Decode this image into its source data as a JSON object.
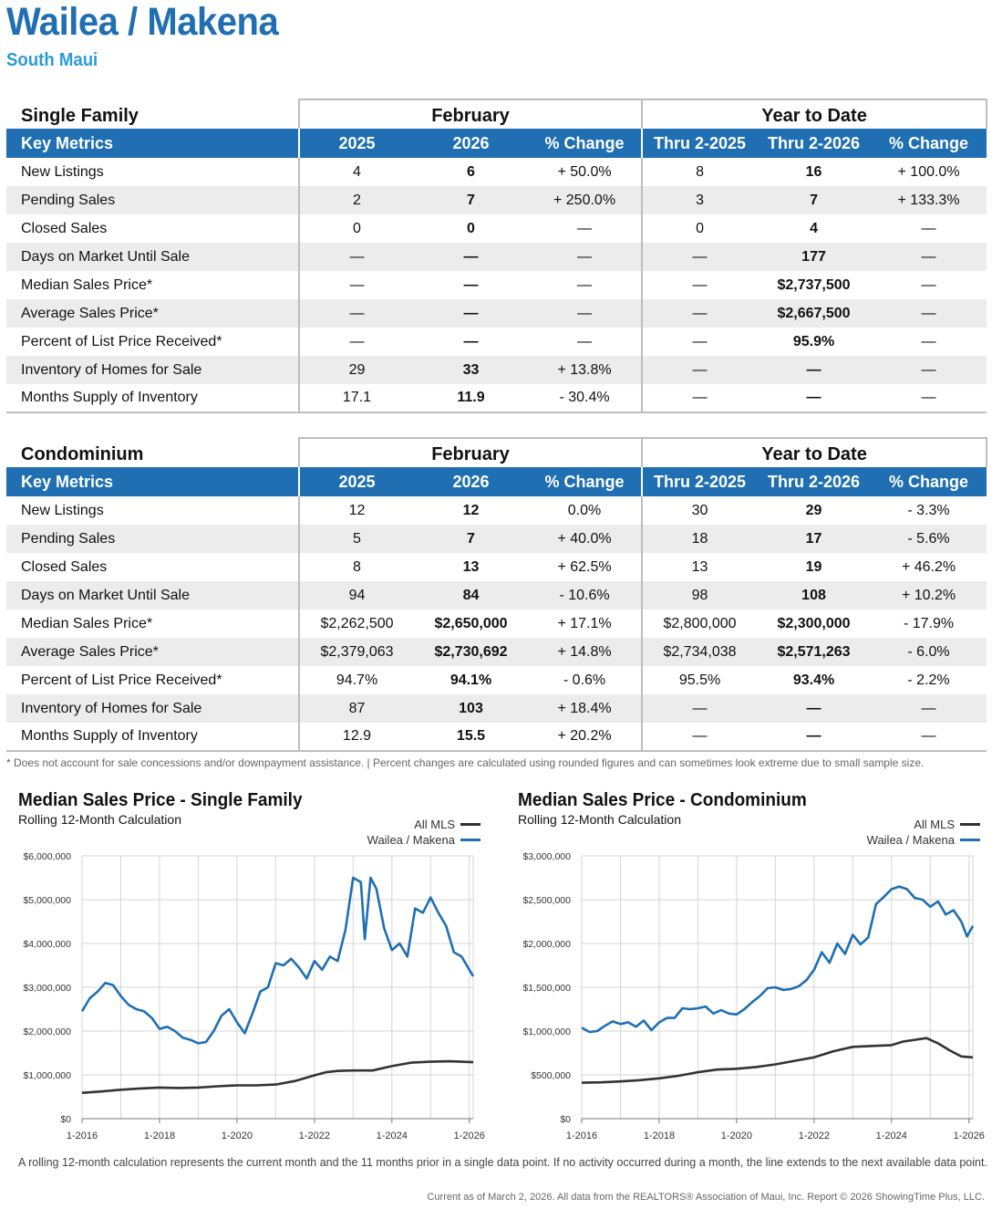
{
  "header": {
    "title": "Wailea / Makena",
    "subtitle": "South Maui"
  },
  "tables": [
    {
      "section": "Single Family",
      "group_month": "February",
      "group_ytd": "Year to Date",
      "columns": [
        "Key Metrics",
        "2025",
        "2026",
        "% Change",
        "Thru 2-2025",
        "Thru 2-2026",
        "% Change"
      ],
      "rows": [
        [
          "New Listings",
          "4",
          "6",
          "+ 50.0%",
          "8",
          "16",
          "+ 100.0%"
        ],
        [
          "Pending Sales",
          "2",
          "7",
          "+ 250.0%",
          "3",
          "7",
          "+ 133.3%"
        ],
        [
          "Closed Sales",
          "0",
          "0",
          "—",
          "0",
          "4",
          "—"
        ],
        [
          "Days on Market Until Sale",
          "—",
          "—",
          "—",
          "—",
          "177",
          "—"
        ],
        [
          "Median Sales Price*",
          "—",
          "—",
          "—",
          "—",
          "$2,737,500",
          "—"
        ],
        [
          "Average Sales Price*",
          "—",
          "—",
          "—",
          "—",
          "$2,667,500",
          "—"
        ],
        [
          "Percent of List Price Received*",
          "—",
          "—",
          "—",
          "—",
          "95.9%",
          "—"
        ],
        [
          "Inventory of Homes for Sale",
          "29",
          "33",
          "+ 13.8%",
          "—",
          "—",
          "—"
        ],
        [
          "Months Supply of Inventory",
          "17.1",
          "11.9",
          "- 30.4%",
          "—",
          "—",
          "—"
        ]
      ]
    },
    {
      "section": "Condominium",
      "group_month": "February",
      "group_ytd": "Year to Date",
      "columns": [
        "Key Metrics",
        "2025",
        "2026",
        "% Change",
        "Thru 2-2025",
        "Thru 2-2026",
        "% Change"
      ],
      "rows": [
        [
          "New Listings",
          "12",
          "12",
          "0.0%",
          "30",
          "29",
          "- 3.3%"
        ],
        [
          "Pending Sales",
          "5",
          "7",
          "+ 40.0%",
          "18",
          "17",
          "- 5.6%"
        ],
        [
          "Closed Sales",
          "8",
          "13",
          "+ 62.5%",
          "13",
          "19",
          "+ 46.2%"
        ],
        [
          "Days on Market Until Sale",
          "94",
          "84",
          "- 10.6%",
          "98",
          "108",
          "+ 10.2%"
        ],
        [
          "Median Sales Price*",
          "$2,262,500",
          "$2,650,000",
          "+ 17.1%",
          "$2,800,000",
          "$2,300,000",
          "- 17.9%"
        ],
        [
          "Average Sales Price*",
          "$2,379,063",
          "$2,730,692",
          "+ 14.8%",
          "$2,734,038",
          "$2,571,263",
          "- 6.0%"
        ],
        [
          "Percent of List Price Received*",
          "94.7%",
          "94.1%",
          "- 0.6%",
          "95.5%",
          "93.4%",
          "- 2.2%"
        ],
        [
          "Inventory of Homes for Sale",
          "87",
          "103",
          "+ 18.4%",
          "—",
          "—",
          "—"
        ],
        [
          "Months Supply of Inventory",
          "12.9",
          "15.5",
          "+ 20.2%",
          "—",
          "—",
          "—"
        ]
      ]
    }
  ],
  "footnote": "* Does not account for sale concessions and/or downpayment assistance. | Percent changes are calculated using rounded figures and can sometimes look extreme due to small sample size.",
  "bottom_note": "A rolling 12-month calculation represents the current month and the 11 months prior in a single data point. If no activity occurred during a month, the line extends to the next available data point.",
  "credit": "Current as of March 2, 2026. All data from the REALTORS® Association of Maui, Inc. Report © 2026 ShowingTime Plus, LLC.",
  "colors": {
    "brand_blue": "#1f6fb2",
    "subtitle_blue": "#2a9bd8",
    "all_mls": "#333333",
    "local": "#1f6fb2"
  },
  "chart_data": [
    {
      "type": "line",
      "title": "Median Sales Price - Single Family",
      "subtitle": "Rolling 12-Month Calculation",
      "legend": [
        "All MLS",
        "Wailea / Makena"
      ],
      "ylim": [
        0,
        6000000
      ],
      "yticks": [
        0,
        1000000,
        2000000,
        3000000,
        4000000,
        5000000,
        6000000
      ],
      "ytick_labels": [
        "$0",
        "$1,000,000",
        "$2,000,000",
        "$3,000,000",
        "$4,000,000",
        "$5,000,000",
        "$6,000,000"
      ],
      "xlim": [
        2016.0,
        2026.1
      ],
      "xticks": [
        2016,
        2018,
        2020,
        2022,
        2024,
        2026
      ],
      "xtick_labels": [
        "1-2016",
        "1-2018",
        "1-2020",
        "1-2022",
        "1-2024",
        "1-2026"
      ],
      "series": [
        {
          "name": "All MLS",
          "x": [
            2016.0,
            2016.5,
            2017.0,
            2017.5,
            2018.0,
            2018.5,
            2019.0,
            2019.5,
            2020.0,
            2020.5,
            2021.0,
            2021.5,
            2022.0,
            2022.3,
            2022.6,
            2023.0,
            2023.5,
            2024.0,
            2024.5,
            2025.0,
            2025.5,
            2026.1
          ],
          "y": [
            590000,
            620000,
            660000,
            690000,
            710000,
            700000,
            710000,
            740000,
            760000,
            760000,
            780000,
            860000,
            990000,
            1060000,
            1090000,
            1100000,
            1100000,
            1200000,
            1280000,
            1300000,
            1310000,
            1290000
          ]
        },
        {
          "name": "Wailea / Makena",
          "x": [
            2016.0,
            2016.2,
            2016.4,
            2016.6,
            2016.8,
            2017.0,
            2017.2,
            2017.4,
            2017.6,
            2017.8,
            2018.0,
            2018.2,
            2018.4,
            2018.6,
            2018.8,
            2019.0,
            2019.2,
            2019.4,
            2019.6,
            2019.8,
            2020.0,
            2020.2,
            2020.4,
            2020.6,
            2020.8,
            2021.0,
            2021.2,
            2021.4,
            2021.6,
            2021.8,
            2022.0,
            2022.2,
            2022.4,
            2022.6,
            2022.8,
            2023.0,
            2023.2,
            2023.3,
            2023.45,
            2023.6,
            2023.8,
            2024.0,
            2024.2,
            2024.4,
            2024.6,
            2024.8,
            2025.0,
            2025.2,
            2025.4,
            2025.6,
            2025.8,
            2026.1
          ],
          "y": [
            2450000,
            2750000,
            2900000,
            3100000,
            3050000,
            2800000,
            2600000,
            2500000,
            2450000,
            2300000,
            2050000,
            2100000,
            2000000,
            1850000,
            1800000,
            1720000,
            1750000,
            2000000,
            2350000,
            2500000,
            2200000,
            1950000,
            2400000,
            2900000,
            3000000,
            3550000,
            3500000,
            3650000,
            3450000,
            3200000,
            3600000,
            3400000,
            3700000,
            3600000,
            4300000,
            5500000,
            5400000,
            4100000,
            5500000,
            5250000,
            4350000,
            3850000,
            4000000,
            3700000,
            4800000,
            4700000,
            5050000,
            4700000,
            4400000,
            3800000,
            3700000,
            3250000
          ]
        }
      ]
    },
    {
      "type": "line",
      "title": "Median Sales Price - Condominium",
      "subtitle": "Rolling 12-Month Calculation",
      "legend": [
        "All MLS",
        "Wailea / Makena"
      ],
      "ylim": [
        0,
        3000000
      ],
      "yticks": [
        0,
        500000,
        1000000,
        1500000,
        2000000,
        2500000,
        3000000
      ],
      "ytick_labels": [
        "$0",
        "$500,000",
        "$1,000,000",
        "$1,500,000",
        "$2,000,000",
        "$2,500,000",
        "$3,000,000"
      ],
      "xlim": [
        2016.0,
        2026.1
      ],
      "xticks": [
        2016,
        2018,
        2020,
        2022,
        2024,
        2026
      ],
      "xtick_labels": [
        "1-2016",
        "1-2018",
        "1-2020",
        "1-2022",
        "1-2024",
        "1-2026"
      ],
      "series": [
        {
          "name": "All MLS",
          "x": [
            2016.0,
            2016.5,
            2017.0,
            2017.5,
            2018.0,
            2018.5,
            2019.0,
            2019.5,
            2020.0,
            2020.5,
            2021.0,
            2021.5,
            2022.0,
            2022.5,
            2023.0,
            2023.5,
            2024.0,
            2024.3,
            2024.6,
            2024.9,
            2025.2,
            2025.5,
            2025.8,
            2026.1
          ],
          "y": [
            410000,
            415000,
            425000,
            440000,
            460000,
            490000,
            530000,
            560000,
            570000,
            590000,
            620000,
            660000,
            700000,
            770000,
            820000,
            830000,
            840000,
            880000,
            900000,
            920000,
            860000,
            780000,
            710000,
            700000
          ]
        },
        {
          "name": "Wailea / Makena",
          "x": [
            2016.0,
            2016.2,
            2016.4,
            2016.6,
            2016.8,
            2017.0,
            2017.2,
            2017.4,
            2017.6,
            2017.8,
            2018.0,
            2018.2,
            2018.4,
            2018.6,
            2018.8,
            2019.0,
            2019.2,
            2019.4,
            2019.6,
            2019.8,
            2020.0,
            2020.2,
            2020.4,
            2020.6,
            2020.8,
            2021.0,
            2021.2,
            2021.4,
            2021.6,
            2021.8,
            2022.0,
            2022.2,
            2022.4,
            2022.6,
            2022.8,
            2023.0,
            2023.2,
            2023.4,
            2023.6,
            2023.8,
            2024.0,
            2024.2,
            2024.4,
            2024.6,
            2024.8,
            2025.0,
            2025.2,
            2025.4,
            2025.6,
            2025.8,
            2025.95,
            2026.1
          ],
          "y": [
            1040000,
            990000,
            1000000,
            1060000,
            1110000,
            1080000,
            1100000,
            1050000,
            1120000,
            1010000,
            1100000,
            1150000,
            1150000,
            1260000,
            1250000,
            1260000,
            1280000,
            1200000,
            1240000,
            1200000,
            1190000,
            1250000,
            1330000,
            1400000,
            1490000,
            1500000,
            1470000,
            1480000,
            1510000,
            1580000,
            1700000,
            1900000,
            1780000,
            2000000,
            1880000,
            2100000,
            1990000,
            2070000,
            2450000,
            2530000,
            2620000,
            2650000,
            2620000,
            2520000,
            2500000,
            2420000,
            2480000,
            2330000,
            2380000,
            2250000,
            2080000,
            2200000
          ]
        }
      ]
    }
  ]
}
